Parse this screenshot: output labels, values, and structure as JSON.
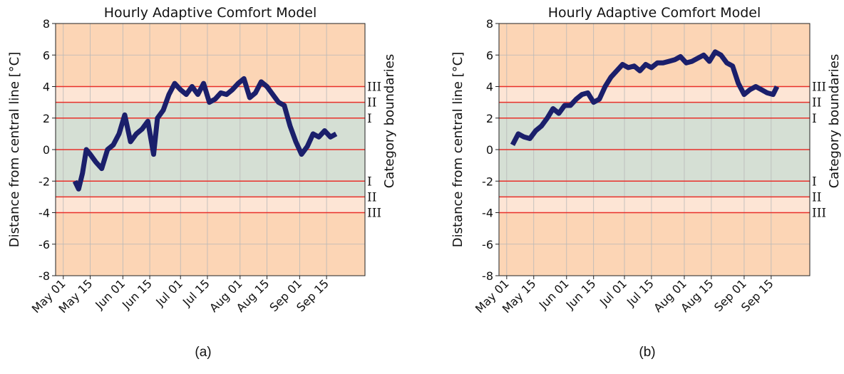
{
  "chart_data": [
    {
      "type": "line",
      "title": "Hourly Adaptive Comfort Model",
      "ylabel": "Distance from central line [°C]",
      "y2label": "Category boundaries",
      "caption": "(a)",
      "xlim": [
        "Apr 27",
        "Oct 05"
      ],
      "xticks": [
        "May 01",
        "May 15",
        "Jun 01",
        "Jun 15",
        "Jul 01",
        "Jul 15",
        "Aug 01",
        "Aug 15",
        "Sep 01",
        "Sep 15"
      ],
      "ylim": [
        -8,
        8
      ],
      "yticks": [
        -8,
        -6,
        -4,
        -2,
        0,
        2,
        4,
        6,
        8
      ],
      "grid": true,
      "zones": [
        {
          "from": -8,
          "to": -4,
          "color": "#fcd5b5"
        },
        {
          "from": -4,
          "to": -3,
          "color": "#fde5d5"
        },
        {
          "from": -3,
          "to": 3,
          "color": "#d5dfd4"
        },
        {
          "from": 3,
          "to": 4,
          "color": "#fde5d5"
        },
        {
          "from": 4,
          "to": 8,
          "color": "#fcd5b5"
        }
      ],
      "hlines": [
        -4,
        -3,
        -2,
        0,
        2,
        3,
        4
      ],
      "hline_color": "#e8302a",
      "boundary_labels": [
        {
          "value": 4,
          "label": "III"
        },
        {
          "value": 3,
          "label": "II"
        },
        {
          "value": 2,
          "label": "I"
        },
        {
          "value": -2,
          "label": "I"
        },
        {
          "value": -3,
          "label": "II"
        },
        {
          "value": -4,
          "label": "III"
        }
      ],
      "x": [
        "May 07",
        "May 09",
        "May 11",
        "May 13",
        "May 15",
        "May 18",
        "May 21",
        "May 24",
        "May 27",
        "May 30",
        "Jun 02",
        "Jun 05",
        "Jun 08",
        "Jun 11",
        "Jun 14",
        "Jun 17",
        "Jun 19",
        "Jun 22",
        "Jun 25",
        "Jun 28",
        "Jul 01",
        "Jul 04",
        "Jul 07",
        "Jul 10",
        "Jul 13",
        "Jul 16",
        "Jul 19",
        "Jul 22",
        "Jul 25",
        "Jul 28",
        "Jul 31",
        "Aug 03",
        "Aug 06",
        "Aug 09",
        "Aug 12",
        "Aug 15",
        "Aug 18",
        "Aug 21",
        "Aug 24",
        "Aug 27",
        "Aug 30",
        "Sep 02",
        "Sep 05",
        "Sep 08",
        "Sep 11",
        "Sep 14",
        "Sep 17",
        "Sep 20"
      ],
      "series": [
        {
          "color": "#1b1f6b",
          "values": [
            -2,
            -2.5,
            -1.5,
            0,
            -0.3,
            -0.8,
            -1.2,
            0,
            0.3,
            1.0,
            2.2,
            0.5,
            1.0,
            1.3,
            1.8,
            -0.3,
            2.0,
            2.5,
            3.5,
            4.2,
            3.8,
            3.5,
            4.0,
            3.5,
            4.2,
            3.0,
            3.2,
            3.6,
            3.5,
            3.8,
            4.2,
            4.5,
            3.3,
            3.6,
            4.3,
            4.0,
            3.5,
            3.0,
            2.8,
            1.5,
            0.5,
            -0.3,
            0.2,
            1.0,
            0.8,
            1.2,
            0.8,
            1.0
          ]
        }
      ]
    },
    {
      "type": "line",
      "title": "Hourly Adaptive Comfort Model",
      "ylabel": "Distance from central line [°C]",
      "y2label": "Category boundaries",
      "caption": "(b)",
      "xlim": [
        "Apr 27",
        "Oct 05"
      ],
      "xticks": [
        "May 01",
        "May 15",
        "Jun 01",
        "Jun 15",
        "Jul 01",
        "Jul 15",
        "Aug 01",
        "Aug 15",
        "Sep 01",
        "Sep 15"
      ],
      "ylim": [
        -8,
        8
      ],
      "yticks": [
        -8,
        -6,
        -4,
        -2,
        0,
        2,
        4,
        6,
        8
      ],
      "grid": true,
      "zones": [
        {
          "from": -8,
          "to": -4,
          "color": "#fcd5b5"
        },
        {
          "from": -4,
          "to": -3,
          "color": "#fde5d5"
        },
        {
          "from": -3,
          "to": 3,
          "color": "#d5dfd4"
        },
        {
          "from": 3,
          "to": 4,
          "color": "#fde5d5"
        },
        {
          "from": 4,
          "to": 8,
          "color": "#fcd5b5"
        }
      ],
      "hlines": [
        -4,
        -3,
        -2,
        0,
        2,
        3,
        4
      ],
      "hline_color": "#e8302a",
      "boundary_labels": [
        {
          "value": 4,
          "label": "III"
        },
        {
          "value": 3,
          "label": "II"
        },
        {
          "value": 2,
          "label": "I"
        },
        {
          "value": -2,
          "label": "I"
        },
        {
          "value": -3,
          "label": "II"
        },
        {
          "value": -4,
          "label": "III"
        }
      ],
      "x": [
        "May 04",
        "May 07",
        "May 10",
        "May 13",
        "May 16",
        "May 19",
        "May 22",
        "May 25",
        "May 28",
        "May 31",
        "Jun 03",
        "Jun 06",
        "Jun 09",
        "Jun 12",
        "Jun 15",
        "Jun 18",
        "Jun 21",
        "Jun 24",
        "Jun 27",
        "Jun 30",
        "Jul 03",
        "Jul 06",
        "Jul 09",
        "Jul 12",
        "Jul 15",
        "Jul 18",
        "Jul 21",
        "Jul 24",
        "Jul 27",
        "Jul 30",
        "Aug 02",
        "Aug 05",
        "Aug 08",
        "Aug 11",
        "Aug 14",
        "Aug 17",
        "Aug 20",
        "Aug 23",
        "Aug 26",
        "Aug 29",
        "Sep 01",
        "Sep 04",
        "Sep 07",
        "Sep 10",
        "Sep 13",
        "Sep 16",
        "Sep 18"
      ],
      "series": [
        {
          "color": "#1b1f6b",
          "values": [
            0.3,
            1.0,
            0.8,
            0.7,
            1.2,
            1.5,
            2.0,
            2.6,
            2.3,
            2.8,
            2.8,
            3.2,
            3.5,
            3.6,
            3.0,
            3.2,
            4.0,
            4.6,
            5.0,
            5.4,
            5.2,
            5.3,
            5.0,
            5.4,
            5.2,
            5.5,
            5.5,
            5.6,
            5.7,
            5.9,
            5.5,
            5.6,
            5.8,
            6.0,
            5.6,
            6.2,
            6.0,
            5.5,
            5.3,
            4.2,
            3.5,
            3.8,
            4.0,
            3.8,
            3.6,
            3.5,
            4.0
          ]
        }
      ]
    }
  ]
}
